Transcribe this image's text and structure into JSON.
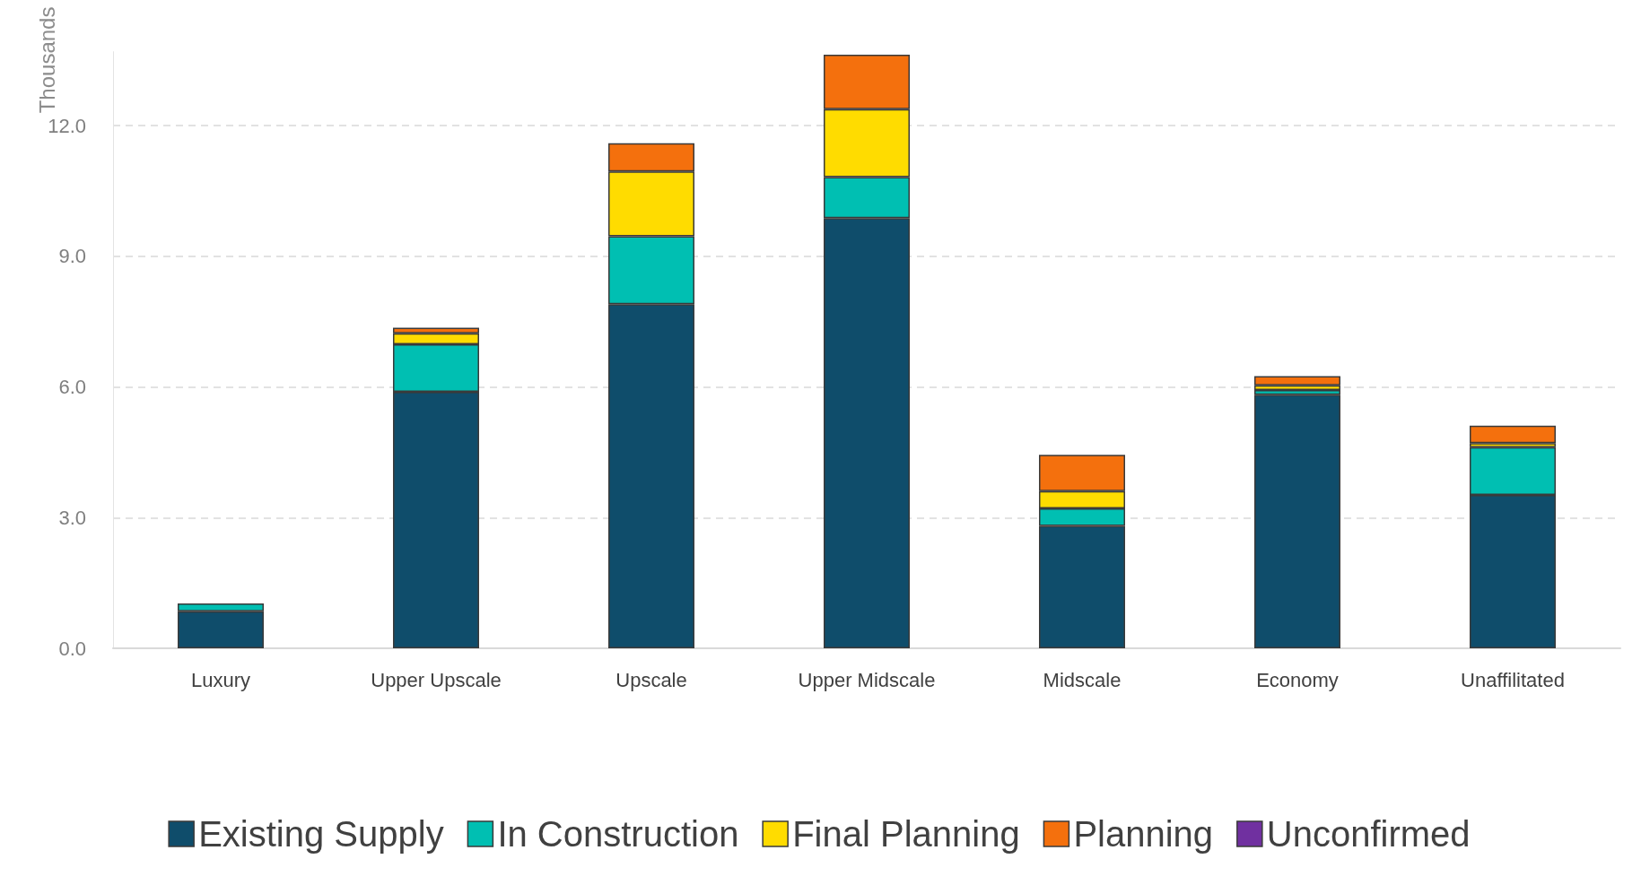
{
  "chart_data": {
    "type": "bar",
    "stacked": true,
    "ylabel": "Thousands",
    "categories": [
      "Luxury",
      "Upper Upscale",
      "Upscale",
      "Upper Midscale",
      "Midscale",
      "Economy",
      "Unaffilitated"
    ],
    "series": [
      {
        "name": "Existing Supply",
        "color": "#0f4d6b",
        "values": [
          0.85,
          5.89,
          7.9,
          9.88,
          2.81,
          5.82,
          3.52
        ]
      },
      {
        "name": "In Construction",
        "color": "#00bfb2",
        "values": [
          0.18,
          1.09,
          1.56,
          0.94,
          0.4,
          0.11,
          1.1
        ]
      },
      {
        "name": "Final Planning",
        "color": "#ffdc00",
        "values": [
          0,
          0.25,
          1.49,
          1.56,
          0.4,
          0.11,
          0.09
        ]
      },
      {
        "name": "Planning",
        "color": "#f4700d",
        "values": [
          0,
          0.13,
          0.65,
          1.25,
          0.83,
          0.21,
          0.4
        ]
      },
      {
        "name": "Unconfirmed",
        "color": "#7030a0",
        "values": [
          0,
          0,
          0,
          0,
          0,
          0,
          0
        ]
      }
    ],
    "ylim": [
      0,
      13.7
    ],
    "yticks": [
      {
        "value": 0,
        "label": "0.0"
      },
      {
        "value": 3,
        "label": "3.0"
      },
      {
        "value": 6,
        "label": "6.0"
      },
      {
        "value": 9,
        "label": "9.0"
      },
      {
        "value": 12,
        "label": "12.0"
      }
    ],
    "grid": "y",
    "legend": "bottom"
  }
}
